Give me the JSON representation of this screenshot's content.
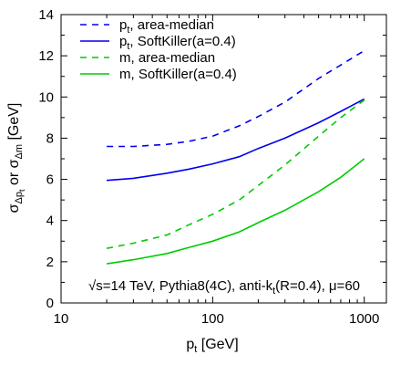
{
  "chart_data": {
    "type": "line",
    "xscale": "log",
    "xlim": [
      10,
      1400
    ],
    "ylim": [
      0,
      14
    ],
    "xticks": [
      10,
      100,
      1000
    ],
    "xtick_labels": [
      "10",
      "100",
      "1000"
    ],
    "yticks": [
      0,
      2,
      4,
      6,
      8,
      10,
      12,
      14
    ],
    "ytick_labels": [
      "0",
      "2",
      "4",
      "6",
      "8",
      "10",
      "12",
      "14"
    ],
    "xlabel": "p",
    "xlabel_sub": "t",
    "xlabel_unit": " [GeV]",
    "ylabel_parts": {
      "a": "σ",
      "a_sub": "Δp",
      "a_subsub": "t",
      "or": " or ",
      "b": "σ",
      "b_sub": "Δm",
      "unit": " [GeV]"
    },
    "annotation_text": "√s=14 TeV, Pythia8(4C), anti-k",
    "annotation_sub": "t",
    "annotation_rest": "(R=0.4), μ=60",
    "legend_position": "top-left",
    "series": [
      {
        "label_main": "p",
        "label_sub": "t",
        "label_rest": ", area-median",
        "color": "#0000ee",
        "dash": "dashed",
        "x": [
          20,
          30,
          50,
          70,
          100,
          150,
          200,
          300,
          500,
          700,
          1000
        ],
        "y": [
          7.6,
          7.6,
          7.7,
          7.85,
          8.1,
          8.6,
          9.05,
          9.75,
          10.9,
          11.55,
          12.25
        ]
      },
      {
        "label_main": "p",
        "label_sub": "t",
        "label_rest": ", SoftKiller(a=0.4)",
        "color": "#0000ee",
        "dash": "solid",
        "x": [
          20,
          30,
          50,
          70,
          100,
          150,
          200,
          300,
          500,
          700,
          1000
        ],
        "y": [
          5.95,
          6.05,
          6.3,
          6.5,
          6.75,
          7.1,
          7.5,
          8.0,
          8.75,
          9.3,
          9.9
        ]
      },
      {
        "label_main": "m",
        "label_sub": "",
        "label_rest": ", area-median",
        "color": "#00cc00",
        "dash": "dashed",
        "x": [
          20,
          30,
          50,
          70,
          100,
          150,
          200,
          300,
          500,
          700,
          1000
        ],
        "y": [
          2.65,
          2.9,
          3.3,
          3.8,
          4.3,
          5.0,
          5.7,
          6.7,
          8.1,
          9.0,
          9.85
        ]
      },
      {
        "label_main": "m",
        "label_sub": "",
        "label_rest": ", SoftKiller(a=0.4)",
        "color": "#00cc00",
        "dash": "solid",
        "x": [
          20,
          30,
          50,
          70,
          100,
          150,
          200,
          300,
          500,
          700,
          1000
        ],
        "y": [
          1.9,
          2.1,
          2.4,
          2.7,
          3.0,
          3.45,
          3.9,
          4.5,
          5.4,
          6.1,
          7.0
        ]
      }
    ]
  }
}
